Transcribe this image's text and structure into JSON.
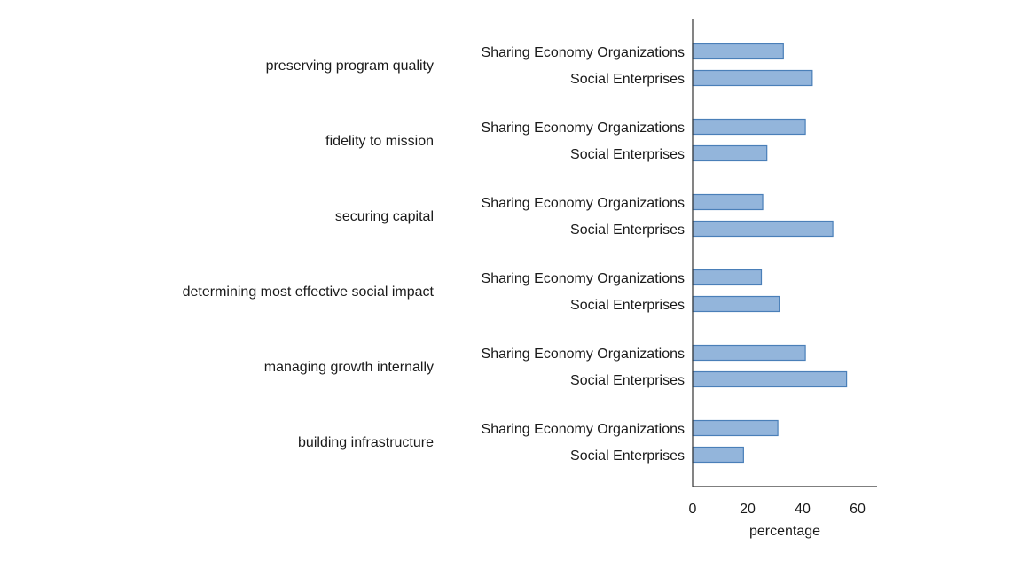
{
  "chart_data": {
    "type": "bar",
    "orientation": "horizontal",
    "xlabel": "percentage",
    "xlim": [
      0,
      68
    ],
    "xticks": [
      "0",
      "20",
      "40",
      "60"
    ],
    "grid": false,
    "bar_color": "#93b5db",
    "bar_edge_color": "#4a7fb8",
    "groups": [
      {
        "label": "preserving program quality",
        "bars": [
          {
            "label": "Sharing Economy Organizations",
            "value": 33
          },
          {
            "label": "Social Enterprises",
            "value": 43.5
          }
        ]
      },
      {
        "label": "fidelity to mission",
        "bars": [
          {
            "label": "Sharing Economy Organizations",
            "value": 41
          },
          {
            "label": "Social Enterprises",
            "value": 27
          }
        ]
      },
      {
        "label": "securing capital",
        "bars": [
          {
            "label": "Sharing Economy Organizations",
            "value": 25.5
          },
          {
            "label": "Social Enterprises",
            "value": 51
          }
        ]
      },
      {
        "label": "determining most effective social impact",
        "bars": [
          {
            "label": "Sharing Economy Organizations",
            "value": 25
          },
          {
            "label": "Social Enterprises",
            "value": 31.5
          }
        ]
      },
      {
        "label": "managing growth internally",
        "bars": [
          {
            "label": "Sharing Economy Organizations",
            "value": 41
          },
          {
            "label": "Social Enterprises",
            "value": 56
          }
        ]
      },
      {
        "label": "building infrastructure",
        "bars": [
          {
            "label": "Sharing Economy Organizations",
            "value": 31
          },
          {
            "label": "Social Enterprises",
            "value": 18.5
          }
        ]
      }
    ]
  }
}
